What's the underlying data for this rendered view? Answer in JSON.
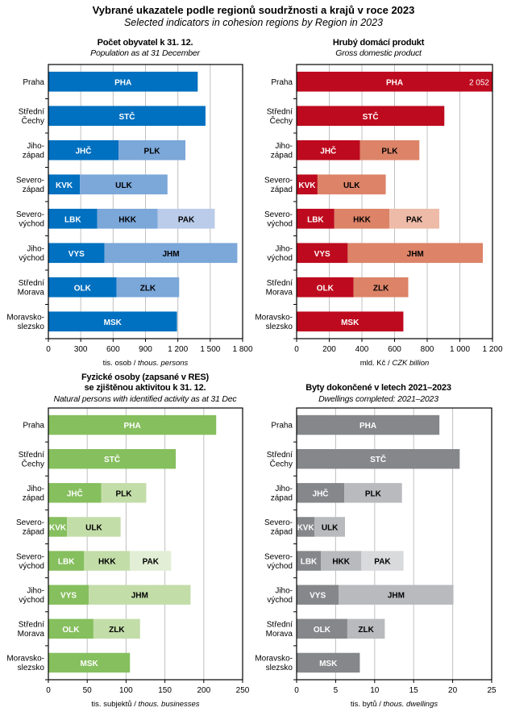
{
  "title": "Vybrané ukazatele podle regionů soudržnosti  a krajů v roce 2023",
  "subtitle": "Selected indicators in cohesion regions  by Region  in 2023",
  "chart_data": [
    {
      "id": "population",
      "type": "bar",
      "orientation": "horizontal",
      "stacked": true,
      "title": "Počet obyvatel k 31. 12.",
      "subtitle": "Population as at 31 December",
      "xlabel_cz": "tis. osob",
      "xlabel_en": "thous. persons",
      "xlim": [
        0,
        1800
      ],
      "xticks": [
        0,
        300,
        600,
        900,
        1200,
        1500,
        1800
      ],
      "xtick_labels": [
        "0",
        "300",
        "600",
        "900",
        "1 200",
        "1 500",
        "1 800"
      ],
      "grid": true,
      "colors": [
        "#0070C0",
        "#7BA7D9",
        "#BACCEA"
      ],
      "label_colors": [
        "#ffffff",
        "#000000",
        "#000000"
      ],
      "categories": [
        "Praha",
        "Střední Čechy",
        "Jihozápad",
        "Severozápad",
        "Severovýchod",
        "Jihovýchod",
        "Střední Morava",
        "Moravskoslezsko"
      ],
      "category_lines": [
        [
          "Praha"
        ],
        [
          "Střední",
          "Čechy"
        ],
        [
          "Jiho-",
          "západ"
        ],
        [
          "Severo-",
          "západ"
        ],
        [
          "Severo-",
          "východ"
        ],
        [
          "Jiho-",
          "východ"
        ],
        [
          "Střední",
          "Morava"
        ],
        [
          "Moravsko-",
          "slezsko"
        ]
      ],
      "rows": [
        [
          {
            "region": "PHA",
            "value": 1384
          }
        ],
        [
          {
            "region": "STČ",
            "value": 1456
          }
        ],
        [
          {
            "region": "JHČ",
            "value": 650
          },
          {
            "region": "PLK",
            "value": 620
          }
        ],
        [
          {
            "region": "KVK",
            "value": 292
          },
          {
            "region": "ULK",
            "value": 812
          }
        ],
        [
          {
            "region": "LBK",
            "value": 453
          },
          {
            "region": "HKK",
            "value": 560
          },
          {
            "region": "PAK",
            "value": 529
          }
        ],
        [
          {
            "region": "VYS",
            "value": 520
          },
          {
            "region": "JHM",
            "value": 1231
          }
        ],
        [
          {
            "region": "OLK",
            "value": 632
          },
          {
            "region": "ZLK",
            "value": 580
          }
        ],
        [
          {
            "region": "MSK",
            "value": 1192
          }
        ]
      ]
    },
    {
      "id": "gdp",
      "type": "bar",
      "orientation": "horizontal",
      "stacked": true,
      "title": "Hrubý domácí produkt",
      "subtitle": "Gross domestic product",
      "xlabel_cz": "mld. Kč",
      "xlabel_en": "CZK billion",
      "xlim": [
        0,
        1200
      ],
      "xticks": [
        0,
        200,
        400,
        600,
        800,
        1000,
        1200
      ],
      "xtick_labels": [
        "0",
        "200",
        "400",
        "600",
        "800",
        "1 000",
        "1 200"
      ],
      "grid": true,
      "colors": [
        "#BE0A1E",
        "#DC8368",
        "#EDBBA8"
      ],
      "label_colors": [
        "#ffffff",
        "#000000",
        "#000000"
      ],
      "categories": [
        "Praha",
        "Střední Čechy",
        "Jihozápad",
        "Severozápad",
        "Severovýchod",
        "Jihovýchod",
        "Střední Morava",
        "Moravskoslezsko"
      ],
      "category_lines": [
        [
          "Praha"
        ],
        [
          "Střední",
          "Čechy"
        ],
        [
          "Jiho-",
          "západ"
        ],
        [
          "Severo-",
          "západ"
        ],
        [
          "Severo-",
          "východ"
        ],
        [
          "Jiho-",
          "východ"
        ],
        [
          "Střední",
          "Morava"
        ],
        [
          "Moravsko-",
          "slezsko"
        ]
      ],
      "annotations": [
        {
          "row": 0,
          "text": "2 052"
        }
      ],
      "rows": [
        [
          {
            "region": "PHA",
            "value": 2052
          }
        ],
        [
          {
            "region": "STČ",
            "value": 905
          }
        ],
        [
          {
            "region": "JHČ",
            "value": 388
          },
          {
            "region": "PLK",
            "value": 364
          }
        ],
        [
          {
            "region": "KVK",
            "value": 128
          },
          {
            "region": "ULK",
            "value": 418
          }
        ],
        [
          {
            "region": "LBK",
            "value": 231
          },
          {
            "region": "HKK",
            "value": 338
          },
          {
            "region": "PAK",
            "value": 305
          }
        ],
        [
          {
            "region": "VYS",
            "value": 313
          },
          {
            "region": "JHM",
            "value": 828
          }
        ],
        [
          {
            "region": "OLK",
            "value": 349
          },
          {
            "region": "ZLK",
            "value": 335
          }
        ],
        [
          {
            "region": "MSK",
            "value": 654
          }
        ]
      ]
    },
    {
      "id": "businesses",
      "type": "bar",
      "orientation": "horizontal",
      "stacked": true,
      "title": "Fyzické osoby (zapsané v RES)",
      "title2": "se zjištěnou aktivitou k 31. 12.",
      "subtitle": "Natural persons with identified activity as at 31 Dec",
      "xlabel_cz": "tis. subjektů",
      "xlabel_en": "thous. businesses",
      "xlim": [
        0,
        250
      ],
      "xticks": [
        0,
        50,
        100,
        150,
        200,
        250
      ],
      "xtick_labels": [
        "0",
        "50",
        "100",
        "150",
        "200",
        "250"
      ],
      "grid": true,
      "colors": [
        "#86BF5E",
        "#C3DDA9",
        "#E2EED5"
      ],
      "label_colors": [
        "#ffffff",
        "#000000",
        "#000000"
      ],
      "categories": [
        "Praha",
        "Střední Čechy",
        "Jihozápad",
        "Severozápad",
        "Severovýchod",
        "Jihovýchod",
        "Střední Morava",
        "Moravskoslezsko"
      ],
      "category_lines": [
        [
          "Praha"
        ],
        [
          "Střední",
          "Čechy"
        ],
        [
          "Jiho-",
          "západ"
        ],
        [
          "Severo-",
          "západ"
        ],
        [
          "Severo-",
          "východ"
        ],
        [
          "Jiho-",
          "východ"
        ],
        [
          "Střední",
          "Morava"
        ],
        [
          "Moravsko-",
          "slezsko"
        ]
      ],
      "rows": [
        [
          {
            "region": "PHA",
            "value": 216
          }
        ],
        [
          {
            "region": "STČ",
            "value": 164
          }
        ],
        [
          {
            "region": "JHČ",
            "value": 68
          },
          {
            "region": "PLK",
            "value": 58
          }
        ],
        [
          {
            "region": "KVK",
            "value": 24
          },
          {
            "region": "ULK",
            "value": 69
          }
        ],
        [
          {
            "region": "LBK",
            "value": 46
          },
          {
            "region": "HKK",
            "value": 59
          },
          {
            "region": "PAK",
            "value": 53
          }
        ],
        [
          {
            "region": "VYS",
            "value": 52
          },
          {
            "region": "JHM",
            "value": 131
          }
        ],
        [
          {
            "region": "OLK",
            "value": 58
          },
          {
            "region": "ZLK",
            "value": 60
          }
        ],
        [
          {
            "region": "MSK",
            "value": 105
          }
        ]
      ]
    },
    {
      "id": "dwellings",
      "type": "bar",
      "orientation": "horizontal",
      "stacked": true,
      "title": "Byty dokončené v letech 2021–2023",
      "subtitle": "Dwellings completed: 2021–2023",
      "xlabel_cz": "tis. bytů",
      "xlabel_en": "thous. dwellings",
      "xlim": [
        0,
        25
      ],
      "xticks": [
        0,
        5,
        10,
        15,
        20,
        25
      ],
      "xtick_labels": [
        "0",
        "5",
        "10",
        "15",
        "20",
        "25"
      ],
      "grid": true,
      "colors": [
        "#85878A",
        "#B8BABD",
        "#D9DADC"
      ],
      "label_colors": [
        "#ffffff",
        "#000000",
        "#000000"
      ],
      "categories": [
        "Praha",
        "Střední Čechy",
        "Jihozápad",
        "Severozápad",
        "Severovýchod",
        "Jihovýchod",
        "Střední Morava",
        "Moravskoslezsko"
      ],
      "category_lines": [
        [
          "Praha"
        ],
        [
          "Střední",
          "Čechy"
        ],
        [
          "Jiho-",
          "západ"
        ],
        [
          "Severo-",
          "západ"
        ],
        [
          "Severo-",
          "východ"
        ],
        [
          "Jiho-",
          "východ"
        ],
        [
          "Střední",
          "Morava"
        ],
        [
          "Moravsko-",
          "slezsko"
        ]
      ],
      "rows": [
        [
          {
            "region": "PHA",
            "value": 18.3
          }
        ],
        [
          {
            "region": "STČ",
            "value": 20.9
          }
        ],
        [
          {
            "region": "JHČ",
            "value": 6.1
          },
          {
            "region": "PLK",
            "value": 7.4
          }
        ],
        [
          {
            "region": "KVK",
            "value": 2.3
          },
          {
            "region": "ULK",
            "value": 3.9
          }
        ],
        [
          {
            "region": "LBK",
            "value": 3.1
          },
          {
            "region": "HKK",
            "value": 5.2
          },
          {
            "region": "PAK",
            "value": 5.4
          }
        ],
        [
          {
            "region": "VYS",
            "value": 5.4
          },
          {
            "region": "JHM",
            "value": 14.7
          }
        ],
        [
          {
            "region": "OLK",
            "value": 6.5
          },
          {
            "region": "ZLK",
            "value": 4.8
          }
        ],
        [
          {
            "region": "MSK",
            "value": 8.1
          }
        ]
      ]
    }
  ]
}
